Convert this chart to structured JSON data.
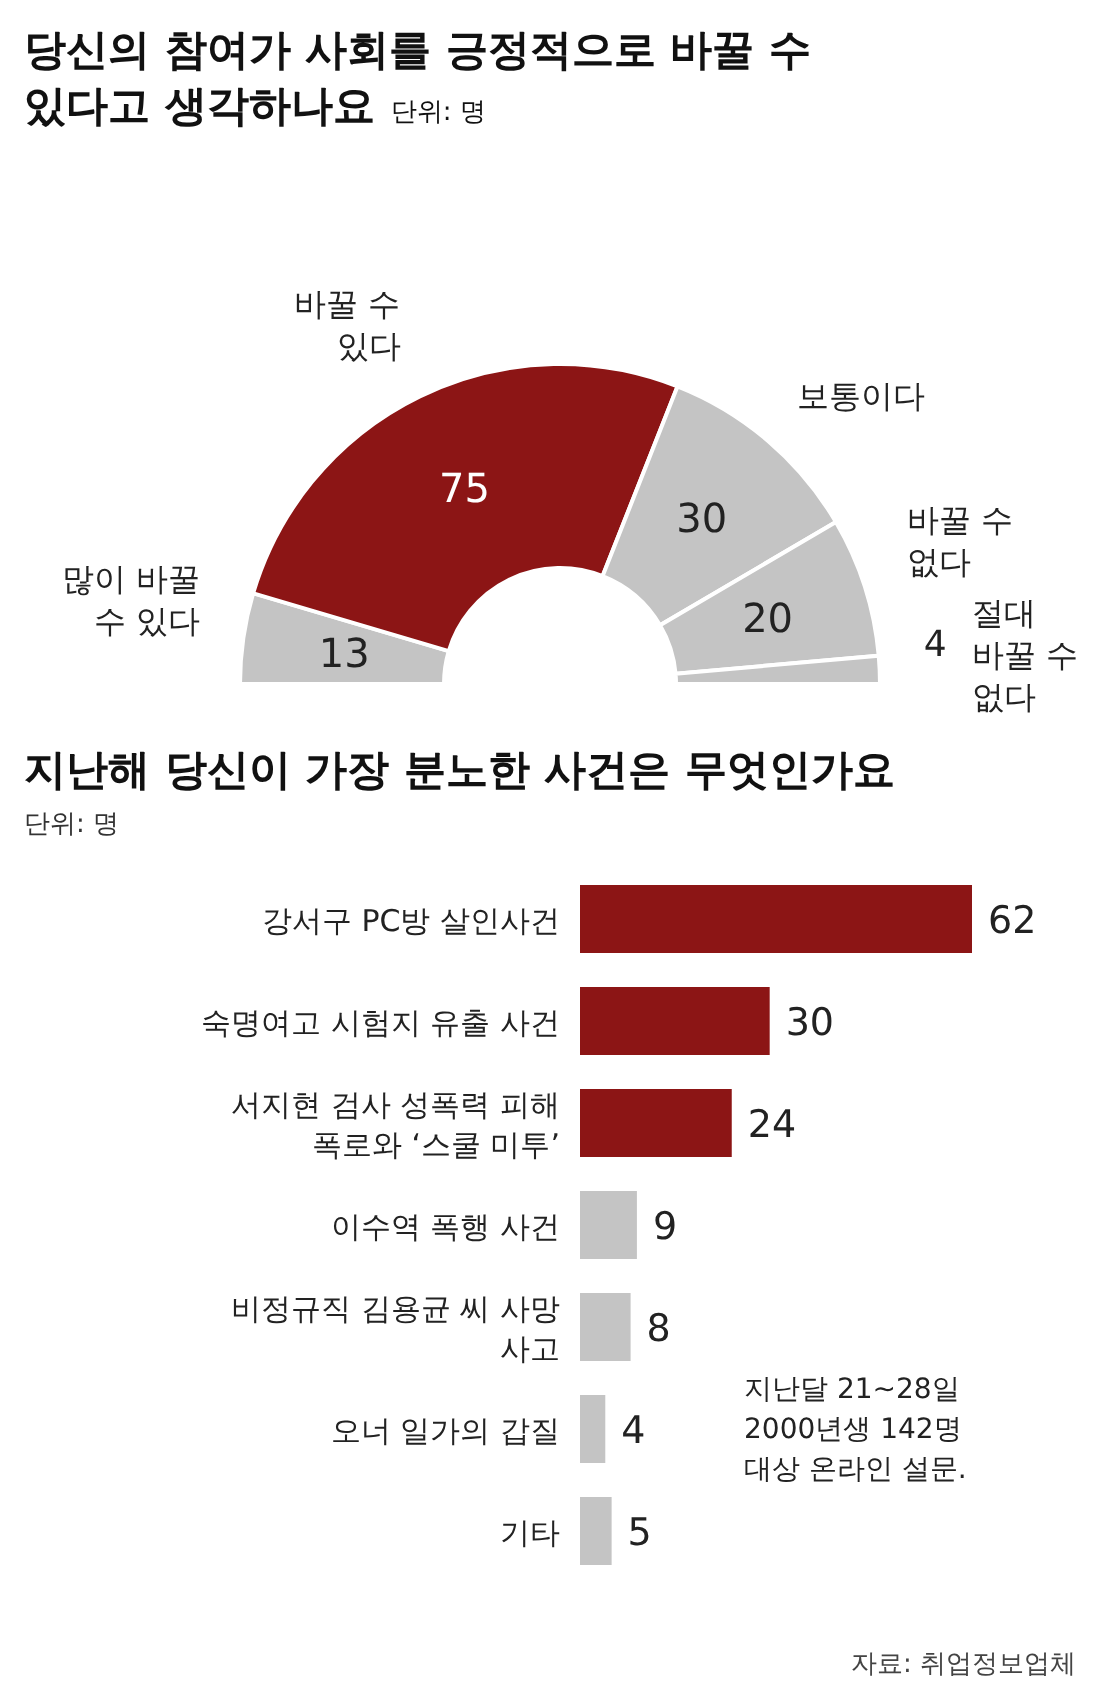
{
  "chart_data": [
    {
      "type": "donut",
      "title": "당신의 참여가 사회를 긍정적으로 바꿀 수 있다고 생각하나요",
      "subtitle": "단위: 명",
      "categories": [
        "많이 바꿀 수 있다",
        "바꿀 수 있다",
        "보통이다",
        "바꿀 수 없다",
        "절대 바꿀 수 없다"
      ],
      "values": [
        13,
        75,
        30,
        20,
        4
      ],
      "colors": [
        "#c4c4c4",
        "#8c1515",
        "#c4c4c4",
        "#c4c4c4",
        "#c4c4c4"
      ],
      "data_labels": true
    },
    {
      "type": "bar",
      "orientation": "horizontal",
      "title": "지난해 당신이 가장 분노한 사건은 무엇인가요",
      "subtitle": "단위: 명",
      "categories": [
        "강서구 PC방 살인사건",
        "숙명여고 시험지 유출 사건",
        "서지현 검사 성폭력 피해 폭로와 ‘스쿨 미투’",
        "이수역 폭행 사건",
        "비정규직 김용균 씨 사망 사고",
        "오너 일가의 갑질",
        "기타"
      ],
      "values": [
        62,
        30,
        24,
        9,
        8,
        4,
        5
      ],
      "colors": [
        "#8c1515",
        "#8c1515",
        "#8c1515",
        "#c4c4c4",
        "#c4c4c4",
        "#c4c4c4",
        "#c4c4c4"
      ],
      "data_labels": true,
      "annotations": [
        "지난달 21~28일 2000년생 142명 대상 온라인 설문.",
        "자료: 취업정보업체"
      ]
    }
  ]
}
